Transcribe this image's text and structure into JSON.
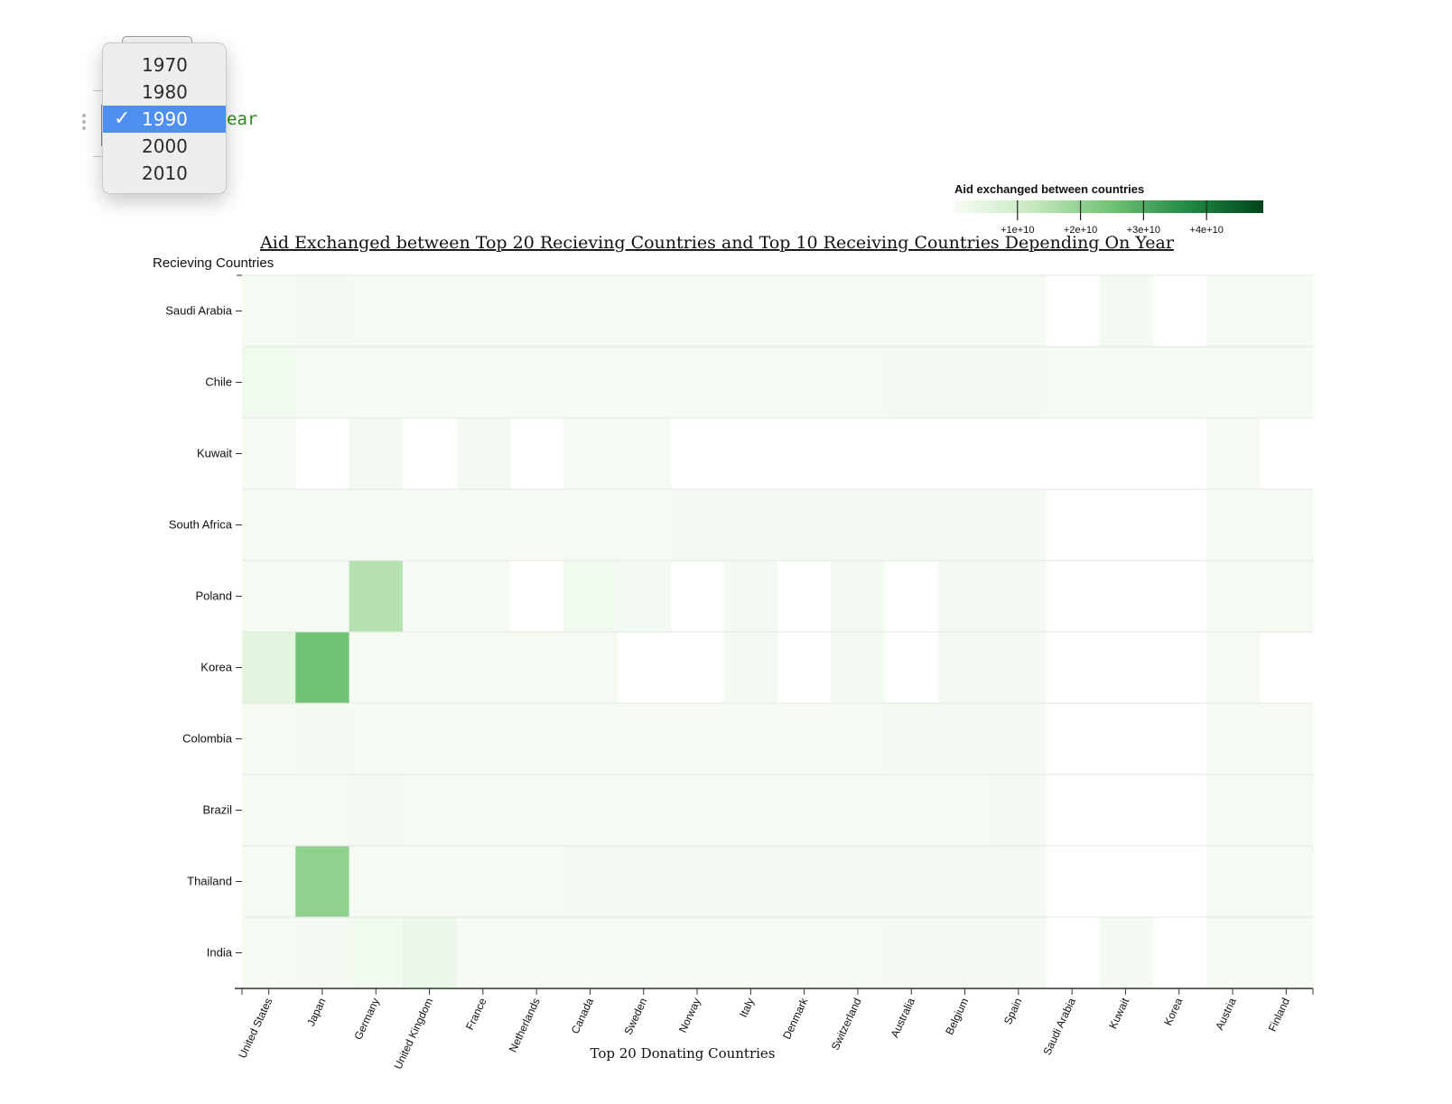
{
  "code_cell": {
    "visible_text": "ear"
  },
  "year_select": {
    "options": [
      "1970",
      "1980",
      "1990",
      "2000",
      "2010"
    ],
    "selected": "1990",
    "check_glyph": "✓"
  },
  "legend": {
    "title": "Aid exchanged between countries",
    "ticks": [
      "+1e+10",
      "+2e+10",
      "+3e+10",
      "+4e+10"
    ],
    "tick_values": [
      10000000000,
      20000000000,
      30000000000,
      40000000000
    ],
    "domain": [
      0,
      49000000000
    ],
    "color_low": "#f7fcf5",
    "color_high": "#00441b"
  },
  "chart_data": {
    "type": "heatmap",
    "title": "Aid Exchanged between Top 20 Recieving Countries and Top 10 Receiving Countries Depending On Year",
    "xlabel": "Top 20 Donating Countries",
    "ylabel": "Recieving Countries",
    "x": [
      "United States",
      "Japan",
      "Germany",
      "United Kingdom",
      "France",
      "Netherlands",
      "Canada",
      "Sweden",
      "Norway",
      "Italy",
      "Denmark",
      "Switzerland",
      "Australia",
      "Belgium",
      "Spain",
      "Saudi Arabia",
      "Kuwait",
      "Korea",
      "Austria",
      "Finland"
    ],
    "y": [
      "Saudi Arabia",
      "Chile",
      "Kuwait",
      "South Africa",
      "Poland",
      "Korea",
      "Colombia",
      "Brazil",
      "Thailand",
      "India"
    ],
    "values": [
      [
        0.05,
        0.1,
        0.05,
        0.05,
        0.05,
        0.05,
        0.05,
        0.05,
        0.05,
        0.05,
        0.05,
        0.05,
        0.05,
        0.05,
        0.05,
        null,
        0.1,
        null,
        0.05,
        0.05
      ],
      [
        0.15,
        0.05,
        0.05,
        0.05,
        0.05,
        0.05,
        0.05,
        0.05,
        0.05,
        0.05,
        0.05,
        0.05,
        0.1,
        0.1,
        0.1,
        0.05,
        0.05,
        0.05,
        0.05,
        0.05
      ],
      [
        0.05,
        null,
        0.1,
        null,
        0.1,
        null,
        0.05,
        0.05,
        null,
        null,
        null,
        null,
        null,
        null,
        null,
        null,
        null,
        null,
        0.05,
        null
      ],
      [
        0.05,
        0.05,
        0.05,
        0.05,
        0.05,
        0.05,
        0.05,
        0.05,
        0.1,
        0.1,
        0.1,
        0.1,
        0.1,
        0.1,
        0.1,
        null,
        null,
        null,
        0.05,
        0.05
      ],
      [
        0.05,
        0.05,
        1.5,
        0.05,
        0.05,
        null,
        0.15,
        0.1,
        null,
        0.1,
        null,
        0.1,
        null,
        0.1,
        0.1,
        null,
        null,
        null,
        0.05,
        0.05
      ],
      [
        0.5,
        2.5,
        0.05,
        0.05,
        0.05,
        0.05,
        0.05,
        null,
        null,
        0.1,
        null,
        0.1,
        null,
        0.1,
        0.1,
        null,
        null,
        null,
        0.05,
        null
      ],
      [
        0.05,
        0.1,
        0.05,
        0.05,
        0.05,
        0.05,
        0.05,
        0.05,
        0.05,
        0.05,
        0.05,
        0.05,
        0.1,
        0.1,
        0.1,
        null,
        null,
        null,
        0.05,
        0.05
      ],
      [
        0.05,
        0.05,
        0.1,
        0.05,
        0.05,
        0.05,
        0.05,
        0.05,
        0.05,
        0.05,
        0.05,
        0.05,
        0.05,
        0.05,
        0.1,
        null,
        null,
        null,
        0.05,
        0.05
      ],
      [
        0.05,
        2.0,
        0.05,
        0.05,
        0.05,
        0.05,
        0.1,
        0.1,
        0.1,
        0.1,
        0.1,
        0.1,
        0.1,
        0.1,
        0.1,
        null,
        null,
        null,
        0.05,
        0.05
      ],
      [
        0.05,
        0.1,
        0.15,
        0.3,
        0.05,
        0.05,
        0.05,
        0.05,
        0.05,
        0.05,
        0.05,
        0.05,
        0.1,
        0.1,
        0.1,
        null,
        0.1,
        null,
        0.05,
        0.05
      ]
    ],
    "value_unit": "e+10",
    "legend_placement": "top-right"
  }
}
